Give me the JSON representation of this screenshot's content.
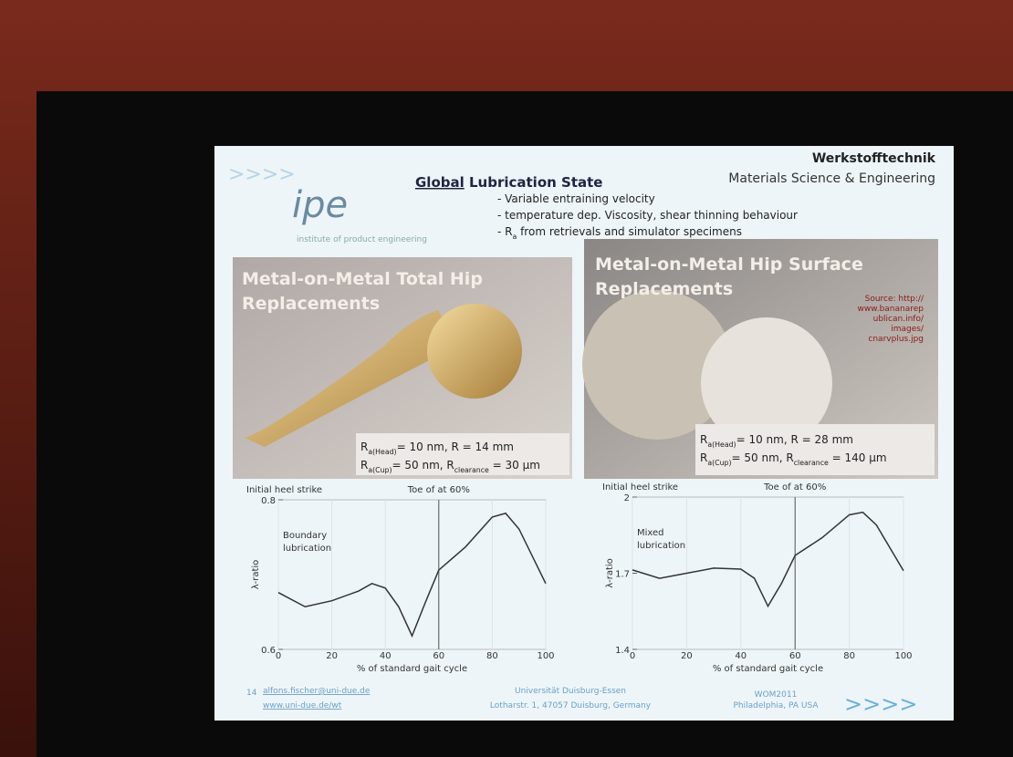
{
  "slide": {
    "logo": {
      "arrows": ">>>>",
      "name": "ipe",
      "tagline": "institute of product engineering"
    },
    "header": {
      "title_underlined": "Global",
      "title_rest": " Lubrication State",
      "dept": "Werkstofftechnik",
      "subtitle": "Materials Science & Engineering"
    },
    "bullets": [
      [
        "- Variable entraining velocity"
      ],
      [
        "- temperature dep. Viscosity, shear thinning behaviour"
      ],
      [
        "- R",
        "a",
        " from retrievals and simulator specimens"
      ]
    ],
    "panels": [
      {
        "title": [
          "Metal-on-Metal Total Hip",
          "Replacements"
        ],
        "specs": [
          [
            "R",
            "a(Head)",
            "= 10 nm, R = 14 mm"
          ],
          [
            "R",
            "a(Cup)",
            "= 50 nm, R",
            "clearance",
            " = 30 µm"
          ]
        ]
      },
      {
        "title": [
          "Metal-on-Metal Hip Surface",
          "Replacements"
        ],
        "source": [
          "Source: http://",
          "www.bananarep",
          "ublican.info/",
          "images/",
          "cnarvplus.jpg"
        ],
        "specs": [
          [
            "R",
            "a(Head)",
            "= 10 nm, R = 28 mm"
          ],
          [
            "R",
            "a(Cup)",
            "= 50 nm, R",
            "clearance",
            " = 140 µm"
          ]
        ]
      }
    ],
    "footer": {
      "page": "14",
      "email": "alfons.fischer@uni-due.de",
      "web": "www.uni-due.de/wt",
      "university": "Universität Duisburg-Essen",
      "address": "Lotharstr. 1, 47057 Duisburg, Germany",
      "event": "WOM2011",
      "place": "Philadelphia, PA USA",
      "arrows": ">>>>"
    }
  },
  "chart_data": [
    {
      "type": "line",
      "annotations": [
        "Initial heel strike",
        "Toe of at 60%",
        "Boundary",
        "lubrication"
      ],
      "x_label": "% of standard gait cycle",
      "y_label": "λ-ratio",
      "x": [
        0,
        10,
        20,
        30,
        35,
        40,
        45,
        50,
        55,
        60,
        70,
        80,
        85,
        90,
        100
      ],
      "series": [
        {
          "color": "#333333",
          "values": [
            0.676,
            0.657,
            0.665,
            0.678,
            0.688,
            0.682,
            0.657,
            0.618,
            0.663,
            0.706,
            0.737,
            0.777,
            0.782,
            0.761,
            0.688
          ]
        }
      ],
      "xlim": [
        0,
        100
      ],
      "xticks": [
        0,
        20,
        40,
        60,
        80,
        100
      ],
      "ylim": [
        0.6,
        0.8
      ],
      "yticks": [
        0.6,
        0.8
      ],
      "vline": 60
    },
    {
      "type": "line",
      "annotations": [
        "Initial heel strike",
        "Toe of at 60%",
        "Mixed",
        "lubrication"
      ],
      "x_label": "% of standard gait cycle",
      "y_label": "λ-ratio",
      "x": [
        0,
        10,
        20,
        30,
        40,
        45,
        50,
        55,
        60,
        70,
        80,
        85,
        90,
        100
      ],
      "series": [
        {
          "color": "#333333",
          "values": [
            1.713,
            1.68,
            1.7,
            1.72,
            1.716,
            1.68,
            1.57,
            1.66,
            1.77,
            1.84,
            1.93,
            1.94,
            1.89,
            1.71
          ]
        }
      ],
      "xlim": [
        0,
        100
      ],
      "xticks": [
        0,
        20,
        40,
        60,
        80,
        100
      ],
      "ylim": [
        1.4,
        2
      ],
      "yticks": [
        1.4,
        1.7,
        2
      ],
      "vline": 60
    }
  ]
}
